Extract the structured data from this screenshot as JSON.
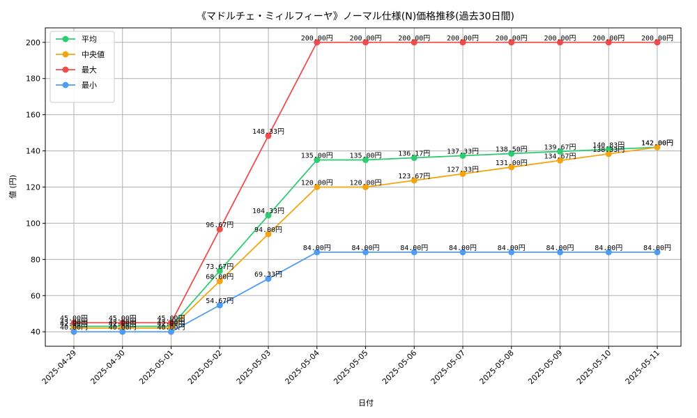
{
  "chart_data": {
    "type": "line",
    "title": "《マドルチェ・ミィルフィーヤ》ノーマル仕様(N)価格推移(過去30日間)",
    "xlabel": "日付",
    "ylabel": "値 (円)",
    "ylim": [
      32,
      208
    ],
    "yticks": [
      40,
      60,
      80,
      100,
      120,
      140,
      160,
      180,
      200
    ],
    "grid": true,
    "legend_position": "top-left",
    "categories": [
      "2025-04-29",
      "2025-04-30",
      "2025-05-01",
      "2025-05-02",
      "2025-05-03",
      "2025-05-04",
      "2025-05-05",
      "2025-05-06",
      "2025-05-07",
      "2025-05-08",
      "2025-05-09",
      "2025-05-10",
      "2025-05-11"
    ],
    "label_suffix": "円",
    "series": [
      {
        "name": "平均",
        "color": "#2ecc71",
        "values": [
          43.0,
          43.0,
          43.0,
          73.67,
          104.33,
          135.0,
          135.0,
          136.17,
          137.33,
          138.5,
          139.67,
          140.83,
          142.0
        ]
      },
      {
        "name": "中央値",
        "color": "#f5a40f",
        "values": [
          42.0,
          42.0,
          42.0,
          68.0,
          94.0,
          120.0,
          120.0,
          123.67,
          127.33,
          131.0,
          134.67,
          138.33,
          142.0
        ]
      },
      {
        "name": "最大",
        "color": "#f24b4b",
        "values": [
          45.0,
          45.0,
          45.0,
          96.67,
          148.33,
          200.0,
          200.0,
          200.0,
          200.0,
          200.0,
          200.0,
          200.0,
          200.0
        ]
      },
      {
        "name": "最小",
        "color": "#4f9cf5",
        "values": [
          40.0,
          40.0,
          40.0,
          54.67,
          69.33,
          84.0,
          84.0,
          84.0,
          84.0,
          84.0,
          84.0,
          84.0,
          84.0
        ]
      }
    ]
  }
}
